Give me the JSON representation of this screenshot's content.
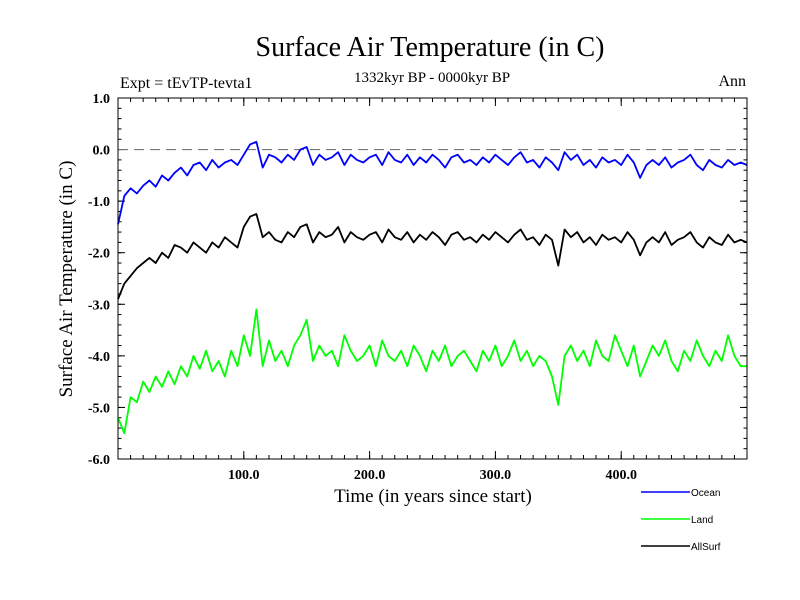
{
  "chart_data": {
    "type": "line",
    "title": "Surface Air Temperature (in C)",
    "subtitle": "1332kyr BP - 0000kyr BP",
    "expt_label": "Expt = tEvTP-tevta1",
    "period_label": "Ann",
    "xlabel": "Time (in years since start)",
    "ylabel": "Surface Air Temperature (in C)",
    "xlim": [
      0,
      500
    ],
    "ylim": [
      -6,
      1
    ],
    "x_ticks": [
      100,
      200,
      300,
      400
    ],
    "x_tick_labels": [
      "100.0",
      "200.0",
      "300.0",
      "400.0"
    ],
    "y_ticks": [
      1,
      0,
      -1,
      -2,
      -3,
      -4,
      -5,
      -6
    ],
    "y_tick_labels": [
      "1.0",
      "0.0",
      "-1.0",
      "-2.0",
      "-3.0",
      "-4.0",
      "-5.0",
      "-6.0"
    ],
    "reference_line": 0,
    "x": [
      0,
      5,
      10,
      15,
      20,
      25,
      30,
      35,
      40,
      45,
      50,
      55,
      60,
      65,
      70,
      75,
      80,
      85,
      90,
      95,
      100,
      105,
      110,
      115,
      120,
      125,
      130,
      135,
      140,
      145,
      150,
      155,
      160,
      165,
      170,
      175,
      180,
      185,
      190,
      195,
      200,
      205,
      210,
      215,
      220,
      225,
      230,
      235,
      240,
      245,
      250,
      255,
      260,
      265,
      270,
      275,
      280,
      285,
      290,
      295,
      300,
      305,
      310,
      315,
      320,
      325,
      330,
      335,
      340,
      345,
      350,
      355,
      360,
      365,
      370,
      375,
      380,
      385,
      390,
      395,
      400,
      405,
      410,
      415,
      420,
      425,
      430,
      435,
      440,
      445,
      450,
      455,
      460,
      465,
      470,
      475,
      480,
      485,
      490,
      495,
      500
    ],
    "series": [
      {
        "name": "Ocean",
        "color": "#0000ff",
        "values": [
          -1.45,
          -0.9,
          -0.75,
          -0.85,
          -0.7,
          -0.6,
          -0.72,
          -0.5,
          -0.6,
          -0.45,
          -0.35,
          -0.5,
          -0.3,
          -0.25,
          -0.4,
          -0.2,
          -0.35,
          -0.25,
          -0.2,
          -0.3,
          -0.1,
          0.1,
          0.15,
          -0.35,
          -0.1,
          -0.15,
          -0.25,
          -0.1,
          -0.2,
          0.0,
          0.05,
          -0.3,
          -0.1,
          -0.2,
          -0.15,
          -0.05,
          -0.3,
          -0.1,
          -0.2,
          -0.25,
          -0.15,
          -0.1,
          -0.3,
          -0.05,
          -0.2,
          -0.25,
          -0.1,
          -0.3,
          -0.15,
          -0.25,
          -0.1,
          -0.2,
          -0.35,
          -0.15,
          -0.1,
          -0.25,
          -0.2,
          -0.3,
          -0.15,
          -0.25,
          -0.1,
          -0.2,
          -0.3,
          -0.15,
          -0.05,
          -0.25,
          -0.2,
          -0.35,
          -0.15,
          -0.25,
          -0.4,
          -0.05,
          -0.2,
          -0.1,
          -0.3,
          -0.2,
          -0.35,
          -0.15,
          -0.25,
          -0.2,
          -0.3,
          -0.1,
          -0.25,
          -0.55,
          -0.3,
          -0.2,
          -0.3,
          -0.15,
          -0.35,
          -0.25,
          -0.2,
          -0.1,
          -0.3,
          -0.4,
          -0.2,
          -0.3,
          -0.35,
          -0.2,
          -0.3,
          -0.25,
          -0.3
        ]
      },
      {
        "name": "Land",
        "color": "#00ff00",
        "values": [
          -5.2,
          -5.5,
          -4.8,
          -4.9,
          -4.5,
          -4.7,
          -4.4,
          -4.6,
          -4.3,
          -4.55,
          -4.2,
          -4.4,
          -4.0,
          -4.25,
          -3.9,
          -4.3,
          -4.1,
          -4.4,
          -3.9,
          -4.2,
          -3.6,
          -4.0,
          -3.1,
          -4.2,
          -3.7,
          -4.1,
          -3.9,
          -4.2,
          -3.8,
          -3.6,
          -3.3,
          -4.1,
          -3.8,
          -4.0,
          -3.9,
          -4.2,
          -3.6,
          -3.9,
          -4.1,
          -4.0,
          -3.8,
          -4.2,
          -3.7,
          -4.0,
          -4.1,
          -3.9,
          -4.2,
          -3.8,
          -4.0,
          -4.3,
          -3.9,
          -4.1,
          -3.8,
          -4.2,
          -4.0,
          -3.9,
          -4.1,
          -4.3,
          -3.9,
          -4.1,
          -3.8,
          -4.2,
          -4.0,
          -3.7,
          -4.1,
          -3.9,
          -4.2,
          -4.0,
          -4.1,
          -4.4,
          -4.95,
          -4.0,
          -3.8,
          -4.1,
          -3.9,
          -4.2,
          -3.7,
          -4.0,
          -4.1,
          -3.6,
          -3.9,
          -4.2,
          -3.8,
          -4.4,
          -4.1,
          -3.8,
          -4.0,
          -3.7,
          -4.1,
          -4.3,
          -3.9,
          -4.1,
          -3.7,
          -4.0,
          -4.2,
          -3.9,
          -4.1,
          -3.6,
          -4.0,
          -4.2,
          -4.2
        ]
      },
      {
        "name": "AllSurf",
        "color": "#000000",
        "values": [
          -2.9,
          -2.6,
          -2.45,
          -2.3,
          -2.2,
          -2.1,
          -2.2,
          -2.0,
          -2.1,
          -1.85,
          -1.9,
          -2.0,
          -1.8,
          -1.9,
          -2.0,
          -1.8,
          -1.9,
          -1.7,
          -1.8,
          -1.9,
          -1.5,
          -1.3,
          -1.25,
          -1.7,
          -1.6,
          -1.75,
          -1.8,
          -1.6,
          -1.7,
          -1.5,
          -1.45,
          -1.8,
          -1.6,
          -1.7,
          -1.65,
          -1.5,
          -1.8,
          -1.6,
          -1.7,
          -1.75,
          -1.65,
          -1.6,
          -1.8,
          -1.55,
          -1.7,
          -1.75,
          -1.6,
          -1.8,
          -1.65,
          -1.75,
          -1.6,
          -1.7,
          -1.85,
          -1.65,
          -1.6,
          -1.75,
          -1.7,
          -1.8,
          -1.65,
          -1.75,
          -1.6,
          -1.7,
          -1.8,
          -1.65,
          -1.55,
          -1.75,
          -1.7,
          -1.85,
          -1.65,
          -1.75,
          -2.25,
          -1.55,
          -1.7,
          -1.6,
          -1.8,
          -1.7,
          -1.85,
          -1.65,
          -1.75,
          -1.7,
          -1.8,
          -1.6,
          -1.75,
          -2.05,
          -1.8,
          -1.7,
          -1.8,
          -1.6,
          -1.85,
          -1.75,
          -1.7,
          -1.6,
          -1.8,
          -1.9,
          -1.7,
          -1.8,
          -1.85,
          -1.65,
          -1.8,
          -1.75,
          -1.8
        ]
      }
    ],
    "legend": [
      {
        "label": "Ocean",
        "color": "#0000ff"
      },
      {
        "label": "Land",
        "color": "#00ff00"
      },
      {
        "label": "AllSurf",
        "color": "#000000"
      }
    ]
  }
}
